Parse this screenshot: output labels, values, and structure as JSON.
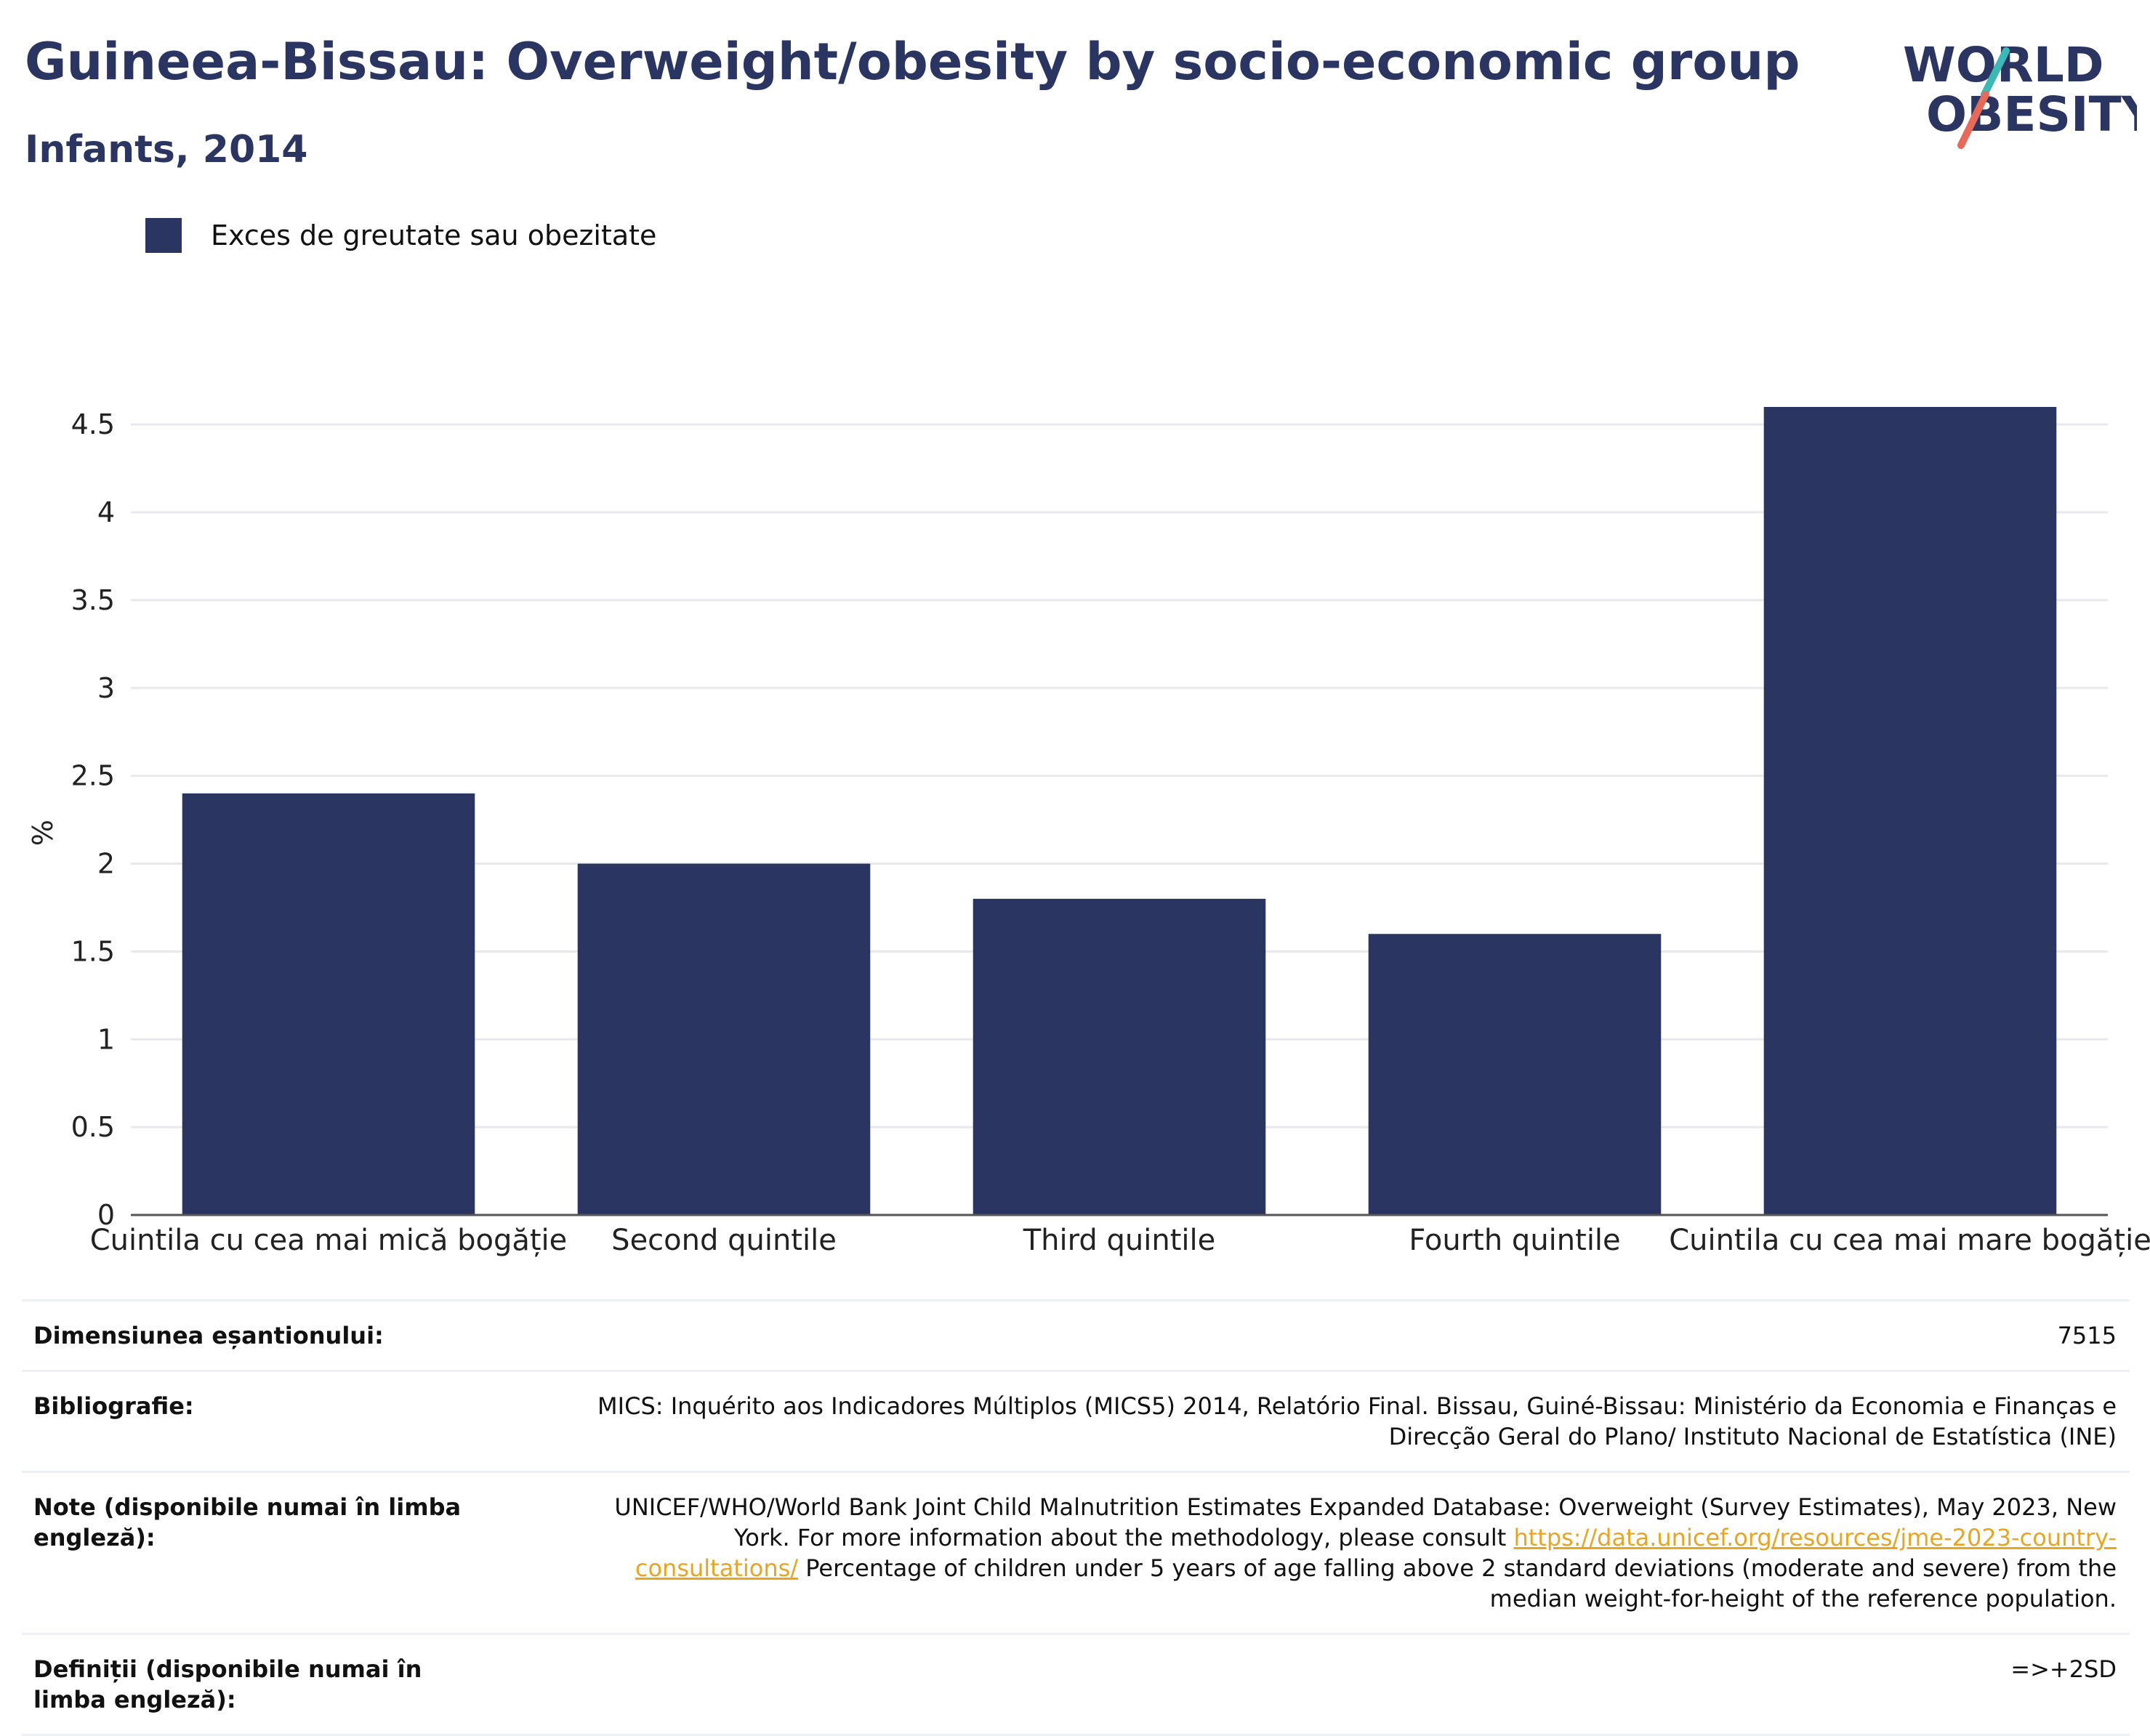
{
  "header": {
    "title": "Guineea-Bissau: Overweight/obesity by socio-economic group",
    "subtitle": "Infants, 2014"
  },
  "logo": {
    "line1": "WORLD",
    "line2": "OBESITY",
    "icon": "world-obesity-logo"
  },
  "colors": {
    "bar": "#2a3561",
    "title": "#2a3561",
    "grid": "#e8e8ee",
    "accent_teal": "#3cb9b4",
    "accent_red": "#e56a5a",
    "link": "#e7a521"
  },
  "chart_data": {
    "type": "bar",
    "categories": [
      "Cuintila cu cea mai mică bogăție",
      "Second quintile",
      "Third quintile",
      "Fourth quintile",
      "Cuintila cu cea mai mare bogăție"
    ],
    "series": [
      {
        "name": "Exces de greutate sau obezitate",
        "values": [
          2.4,
          2.0,
          1.8,
          1.6,
          4.6
        ]
      }
    ],
    "ylabel": "%",
    "ylim": [
      0,
      4.6
    ],
    "yticks": [
      "0",
      "0.5",
      "1",
      "1.5",
      "2",
      "2.5",
      "3",
      "3.5",
      "4",
      "4.5"
    ],
    "grid": true,
    "legend": "top-left"
  },
  "info": {
    "sample_label": "Dimensiunea eșantionului:",
    "sample_value": "7515",
    "bib_label": "Bibliografie:",
    "bib_value": "MICS: Inquérito aos Indicadores Múltiplos (MICS5) 2014, Relatório Final. Bissau, Guiné-Bissau: Ministério da Economia e Finanças e Direcção Geral do Plano/ Instituto Nacional de Estatística (INE)",
    "notes_label": "Note (disponibile numai în limba engleză):",
    "notes_value_1": "UNICEF/WHO/World Bank Joint Child Malnutrition Estimates Expanded Database: Overweight (Survey Estimates), May 2023, New York. For more information about the methodology, please consult",
    "notes_link": "https://data.unicef.org/resources/jme-2023-country-consultations/",
    "notes_value_2": "Percentage of children under 5 years of age falling above 2 standard deviations (moderate and severe) from the median weight-for-height of the reference population.",
    "def_label": "Definiții (disponibile numai în limba engleză):",
    "def_value": "=>+2SD"
  }
}
